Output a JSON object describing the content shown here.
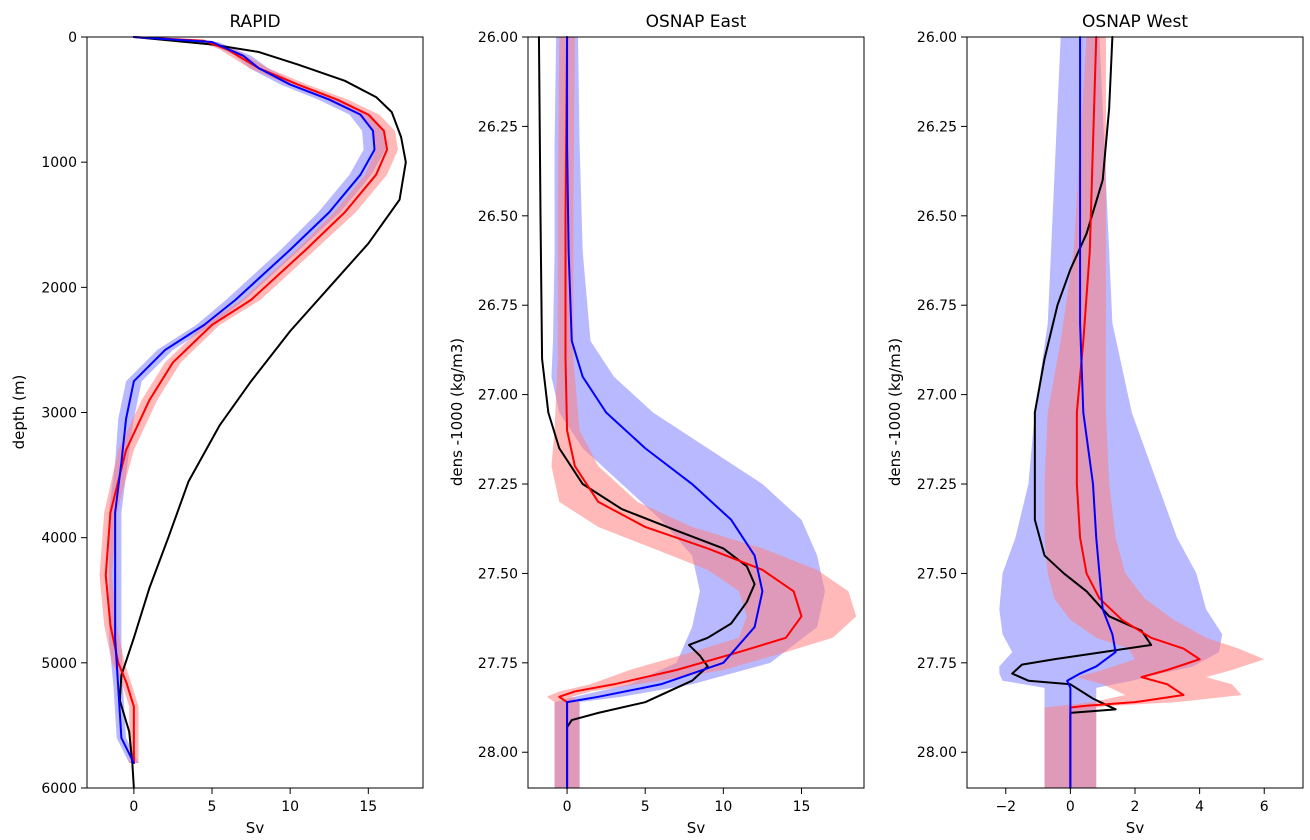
{
  "colors": {
    "model_a": "#0000ff",
    "model_b": "#ff0000",
    "observation": "#000000",
    "band_a": "#8080ff",
    "band_b": "#ff8080"
  },
  "chart_data": [
    {
      "type": "line",
      "title": "RAPID",
      "xlabel": "Sv",
      "ylabel": "depth (m)",
      "xlim": [
        -3.0,
        18.5
      ],
      "ylim": [
        6000,
        0
      ],
      "y_inverted": true,
      "xticks": [
        0,
        5,
        10,
        15
      ],
      "xtick_labels": [
        "0",
        "5",
        "10",
        "15"
      ],
      "yticks": [
        0,
        1000,
        2000,
        3000,
        4000,
        5000,
        6000
      ],
      "ytick_labels": [
        "0",
        "1000",
        "2000",
        "3000",
        "4000",
        "5000",
        "6000"
      ],
      "series": [
        {
          "key": "black",
          "color": "#000000",
          "points": [
            [
              0.0,
              0
            ],
            [
              5.0,
              60
            ],
            [
              8.0,
              120
            ],
            [
              10.5,
              220
            ],
            [
              13.5,
              350
            ],
            [
              15.5,
              480
            ],
            [
              16.5,
              600
            ],
            [
              17.1,
              800
            ],
            [
              17.4,
              1000
            ],
            [
              17.0,
              1300
            ],
            [
              15.0,
              1650
            ],
            [
              12.5,
              2000
            ],
            [
              10.0,
              2350
            ],
            [
              7.5,
              2750
            ],
            [
              5.5,
              3100
            ],
            [
              3.5,
              3550
            ],
            [
              2.2,
              4000
            ],
            [
              1.0,
              4400
            ],
            [
              0.0,
              4800
            ],
            [
              -0.8,
              5100
            ],
            [
              -0.9,
              5300
            ],
            [
              -0.3,
              5550
            ],
            [
              -0.1,
              5800
            ],
            [
              0.0,
              6000
            ]
          ]
        },
        {
          "key": "red",
          "color": "#ff0000",
          "points": [
            [
              0.0,
              0
            ],
            [
              4.5,
              30
            ],
            [
              6.0,
              100
            ],
            [
              8.0,
              250
            ],
            [
              10.5,
              380
            ],
            [
              13.0,
              500
            ],
            [
              15.0,
              620
            ],
            [
              16.0,
              750
            ],
            [
              16.2,
              900
            ],
            [
              15.5,
              1100
            ],
            [
              13.5,
              1400
            ],
            [
              11.0,
              1700
            ],
            [
              7.5,
              2100
            ],
            [
              5.0,
              2300
            ],
            [
              2.5,
              2600
            ],
            [
              1.0,
              2900
            ],
            [
              -0.5,
              3300
            ],
            [
              -1.5,
              3800
            ],
            [
              -1.8,
              4300
            ],
            [
              -1.5,
              4700
            ],
            [
              -1.0,
              5000
            ],
            [
              -0.5,
              5150
            ],
            [
              0.0,
              5350
            ],
            [
              0.0,
              5800
            ]
          ]
        },
        {
          "key": "blue",
          "color": "#0000ff",
          "points": [
            [
              0.0,
              0
            ],
            [
              5.0,
              40
            ],
            [
              7.0,
              150
            ],
            [
              8.0,
              250
            ],
            [
              10.0,
              380
            ],
            [
              12.5,
              500
            ],
            [
              14.5,
              620
            ],
            [
              15.3,
              750
            ],
            [
              15.4,
              900
            ],
            [
              14.5,
              1100
            ],
            [
              12.5,
              1400
            ],
            [
              10.0,
              1700
            ],
            [
              6.5,
              2100
            ],
            [
              4.5,
              2300
            ],
            [
              2.0,
              2500
            ],
            [
              0.0,
              2750
            ],
            [
              -0.5,
              3050
            ],
            [
              -0.8,
              3400
            ],
            [
              -1.2,
              3800
            ],
            [
              -1.2,
              4300
            ],
            [
              -1.2,
              4800
            ],
            [
              -1.0,
              5200
            ],
            [
              -0.8,
              5600
            ],
            [
              0.0,
              5800
            ]
          ]
        }
      ],
      "bands": [
        {
          "key": "blue-band",
          "color": "#8080ff",
          "width": [
            0.3,
            0.4,
            0.5,
            0.6,
            0.6,
            0.7,
            0.7,
            0.7,
            0.7,
            0.7,
            0.7,
            0.6,
            0.6,
            0.5,
            0.5,
            0.5,
            0.5,
            0.4,
            0.4,
            0.4,
            0.4,
            0.3,
            0.3,
            0.3
          ]
        },
        {
          "key": "red-band",
          "color": "#ff8080",
          "width": [
            0.3,
            0.4,
            0.5,
            0.6,
            0.6,
            0.7,
            0.7,
            0.7,
            0.7,
            0.7,
            0.7,
            0.6,
            0.6,
            0.5,
            0.5,
            0.5,
            0.5,
            0.4,
            0.4,
            0.4,
            0.4,
            0.3,
            0.3,
            0.3
          ]
        }
      ]
    },
    {
      "type": "line",
      "title": "OSNAP East",
      "xlabel": "Sv",
      "ylabel": "dens -1000 (kg/m3)",
      "xlim": [
        -2.5,
        19.0
      ],
      "ylim": [
        28.1,
        26.0
      ],
      "y_inverted": true,
      "xticks": [
        0,
        5,
        10,
        15
      ],
      "xtick_labels": [
        "0",
        "5",
        "10",
        "15"
      ],
      "yticks": [
        26.0,
        26.25,
        26.5,
        26.75,
        27.0,
        27.25,
        27.5,
        27.75,
        28.0
      ],
      "ytick_labels": [
        "26.00",
        "26.25",
        "26.50",
        "26.75",
        "27.00",
        "27.25",
        "27.50",
        "27.75",
        "28.00"
      ],
      "series": [
        {
          "key": "black",
          "color": "#000000",
          "points": [
            [
              -1.8,
              26.0
            ],
            [
              -1.7,
              26.5
            ],
            [
              -1.6,
              26.9
            ],
            [
              -1.2,
              27.05
            ],
            [
              -0.5,
              27.15
            ],
            [
              1.0,
              27.25
            ],
            [
              3.5,
              27.32
            ],
            [
              7.0,
              27.38
            ],
            [
              10.0,
              27.43
            ],
            [
              11.5,
              27.48
            ],
            [
              12.0,
              27.53
            ],
            [
              11.5,
              27.58
            ],
            [
              10.5,
              27.64
            ],
            [
              9.0,
              27.68
            ],
            [
              7.8,
              27.7
            ],
            [
              8.5,
              27.73
            ],
            [
              9.0,
              27.76
            ],
            [
              8.0,
              27.8
            ],
            [
              6.5,
              27.83
            ],
            [
              5.0,
              27.86
            ],
            [
              2.0,
              27.89
            ],
            [
              0.3,
              27.91
            ],
            [
              0.0,
              27.93
            ],
            [
              0.0,
              28.1
            ]
          ]
        },
        {
          "key": "red",
          "color": "#ff0000",
          "points": [
            [
              0.0,
              26.0
            ],
            [
              -0.1,
              26.5
            ],
            [
              -0.1,
              26.9
            ],
            [
              0.0,
              27.1
            ],
            [
              0.5,
              27.2
            ],
            [
              2.0,
              27.3
            ],
            [
              5.0,
              27.37
            ],
            [
              9.0,
              27.43
            ],
            [
              12.5,
              27.49
            ],
            [
              14.5,
              27.55
            ],
            [
              15.0,
              27.62
            ],
            [
              14.0,
              27.68
            ],
            [
              11.0,
              27.72
            ],
            [
              7.0,
              27.77
            ],
            [
              3.0,
              27.81
            ],
            [
              0.5,
              27.83
            ],
            [
              -0.5,
              27.845
            ],
            [
              0.0,
              27.86
            ],
            [
              0.0,
              28.1
            ]
          ]
        },
        {
          "key": "blue",
          "color": "#0000ff",
          "points": [
            [
              0.0,
              26.0
            ],
            [
              0.0,
              26.3
            ],
            [
              0.1,
              26.6
            ],
            [
              0.3,
              26.85
            ],
            [
              1.0,
              26.95
            ],
            [
              2.5,
              27.05
            ],
            [
              5.0,
              27.15
            ],
            [
              8.0,
              27.25
            ],
            [
              10.5,
              27.35
            ],
            [
              12.0,
              27.45
            ],
            [
              12.5,
              27.55
            ],
            [
              12.0,
              27.65
            ],
            [
              10.0,
              27.75
            ],
            [
              6.0,
              27.81
            ],
            [
              2.0,
              27.845
            ],
            [
              0.0,
              27.86
            ],
            [
              0.0,
              28.1
            ]
          ]
        }
      ],
      "bands": [
        {
          "key": "blue-band",
          "color": "#8080ff",
          "width": [
            0.7,
            0.8,
            0.9,
            1.2,
            2.0,
            3.0,
            4.0,
            4.5,
            4.5,
            4.0,
            4.0,
            4.0,
            3.0,
            2.0,
            1.5,
            0.8,
            0.8
          ]
        },
        {
          "key": "red-band",
          "color": "#ff8080",
          "width": [
            0.5,
            0.5,
            0.5,
            0.8,
            1.5,
            2.5,
            3.0,
            3.5,
            3.5,
            3.5,
            3.5,
            3.0,
            3.0,
            3.0,
            1.5,
            1.0,
            0.8,
            0.8,
            0.8
          ]
        }
      ]
    },
    {
      "type": "line",
      "title": "OSNAP West",
      "xlabel": "Sv",
      "ylabel": "dens -1000 (kg/m3)",
      "xlim": [
        -3.2,
        7.2
      ],
      "ylim": [
        28.1,
        26.0
      ],
      "y_inverted": true,
      "xticks": [
        -2,
        0,
        2,
        4,
        6
      ],
      "xtick_labels": [
        "−2",
        "0",
        "2",
        "4",
        "6"
      ],
      "yticks": [
        26.0,
        26.25,
        26.5,
        26.75,
        27.0,
        27.25,
        27.5,
        27.75,
        28.0
      ],
      "ytick_labels": [
        "26.00",
        "26.25",
        "26.50",
        "26.75",
        "27.00",
        "27.25",
        "27.50",
        "27.75",
        "28.00"
      ],
      "series": [
        {
          "key": "black",
          "color": "#000000",
          "points": [
            [
              1.3,
              26.0
            ],
            [
              1.2,
              26.2
            ],
            [
              1.0,
              26.4
            ],
            [
              0.5,
              26.55
            ],
            [
              0.0,
              26.65
            ],
            [
              -0.4,
              26.75
            ],
            [
              -0.8,
              26.9
            ],
            [
              -1.1,
              27.05
            ],
            [
              -1.1,
              27.2
            ],
            [
              -1.1,
              27.35
            ],
            [
              -0.8,
              27.45
            ],
            [
              -0.2,
              27.5
            ],
            [
              0.5,
              27.55
            ],
            [
              1.2,
              27.62
            ],
            [
              2.2,
              27.66
            ],
            [
              2.5,
              27.7
            ],
            [
              1.0,
              27.72
            ],
            [
              -0.5,
              27.74
            ],
            [
              -1.5,
              27.755
            ],
            [
              -1.8,
              27.78
            ],
            [
              -1.3,
              27.8
            ],
            [
              0.0,
              27.81
            ],
            [
              0.7,
              27.85
            ],
            [
              1.4,
              27.88
            ],
            [
              0.0,
              27.89
            ],
            [
              0.0,
              28.1
            ]
          ]
        },
        {
          "key": "red",
          "color": "#ff0000",
          "points": [
            [
              0.8,
              26.0
            ],
            [
              0.7,
              26.3
            ],
            [
              0.6,
              26.6
            ],
            [
              0.4,
              26.85
            ],
            [
              0.2,
              27.05
            ],
            [
              0.2,
              27.25
            ],
            [
              0.3,
              27.4
            ],
            [
              0.5,
              27.5
            ],
            [
              0.9,
              27.57
            ],
            [
              1.6,
              27.63
            ],
            [
              2.5,
              27.68
            ],
            [
              3.5,
              27.71
            ],
            [
              4.0,
              27.74
            ],
            [
              3.0,
              27.77
            ],
            [
              2.2,
              27.79
            ],
            [
              3.0,
              27.81
            ],
            [
              3.5,
              27.84
            ],
            [
              2.0,
              27.86
            ],
            [
              0.5,
              27.87
            ],
            [
              0.0,
              27.875
            ],
            [
              0.0,
              28.1
            ]
          ]
        },
        {
          "key": "blue",
          "color": "#0000ff",
          "points": [
            [
              0.3,
              26.0
            ],
            [
              0.3,
              26.4
            ],
            [
              0.3,
              26.8
            ],
            [
              0.4,
              27.05
            ],
            [
              0.7,
              27.25
            ],
            [
              0.8,
              27.4
            ],
            [
              0.9,
              27.5
            ],
            [
              1.0,
              27.6
            ],
            [
              1.3,
              27.67
            ],
            [
              1.4,
              27.72
            ],
            [
              0.8,
              27.76
            ],
            [
              0.3,
              27.78
            ],
            [
              -0.1,
              27.8
            ],
            [
              0.0,
              27.82
            ],
            [
              0.0,
              28.1
            ]
          ]
        }
      ],
      "bands": [
        {
          "key": "blue-band",
          "color": "#8080ff",
          "width": [
            0.6,
            0.8,
            1.0,
            1.5,
            2.0,
            2.5,
            3.0,
            3.2,
            3.4,
            3.2,
            3.0,
            2.5,
            2.0,
            0.8,
            0.8
          ]
        },
        {
          "key": "red-band",
          "color": "#ff8080",
          "width": [
            0.3,
            0.4,
            0.5,
            0.7,
            0.9,
            1.0,
            1.1,
            1.2,
            1.4,
            1.6,
            1.7,
            1.7,
            2.0,
            2.0,
            2.0,
            2.0,
            1.8,
            1.3,
            0.8,
            0.8,
            0.8
          ]
        }
      ]
    }
  ]
}
